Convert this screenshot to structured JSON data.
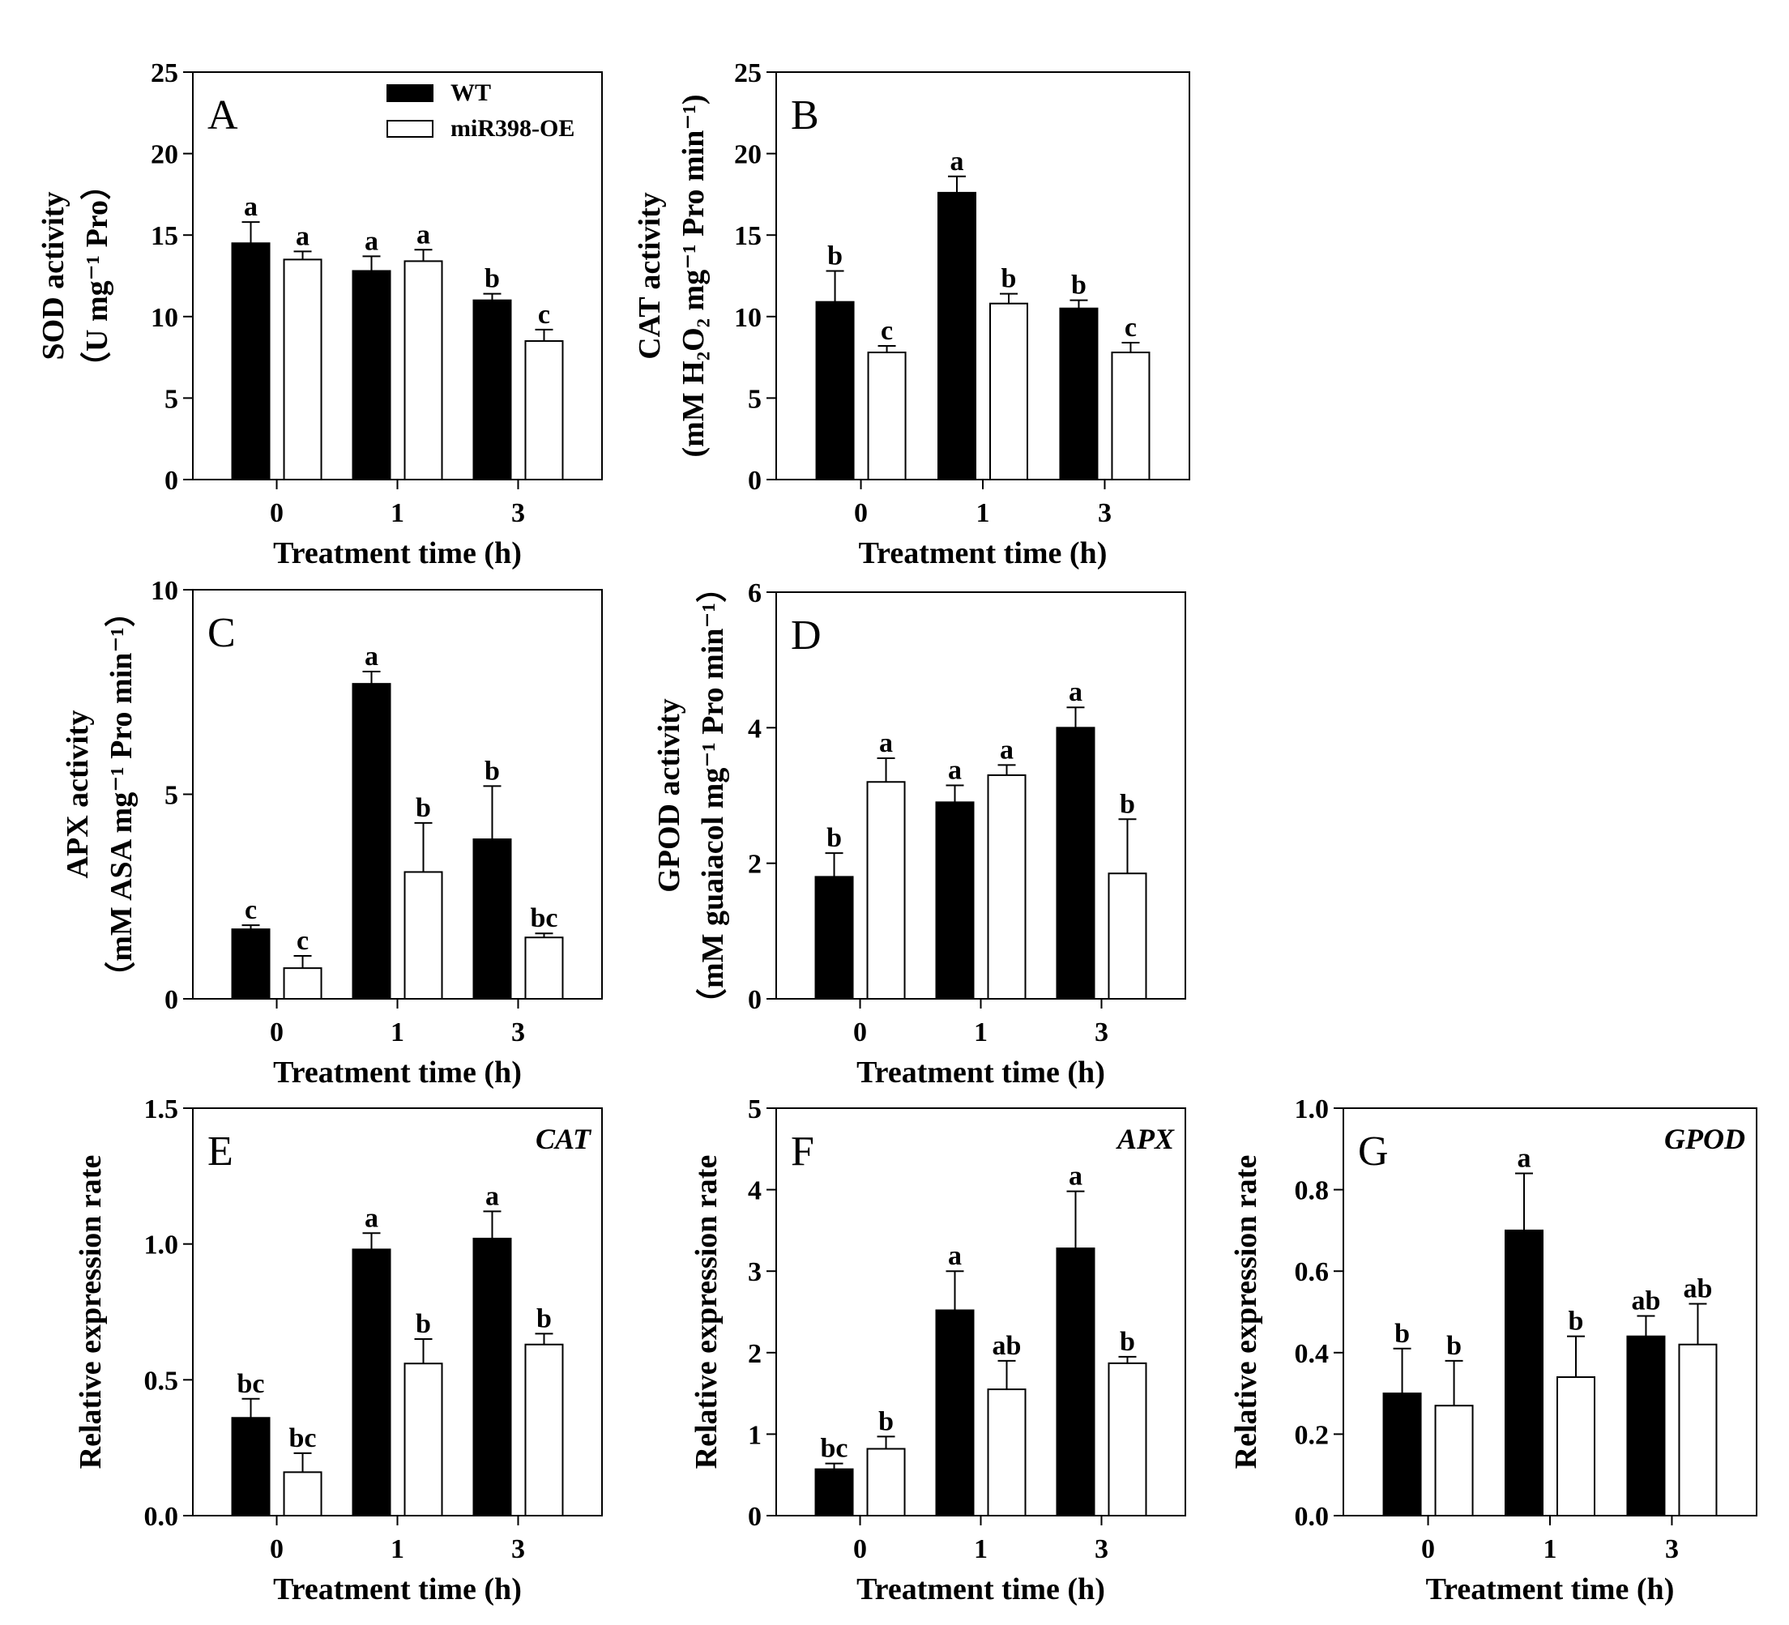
{
  "legend": {
    "series": [
      {
        "name": "WT",
        "color": "#000000"
      },
      {
        "name": "miR398-OE",
        "color": "#ffffff"
      }
    ]
  },
  "chart_data": [
    {
      "type": "bar",
      "panel": "A",
      "gene_label": "",
      "categories": [
        "0",
        "1",
        "3"
      ],
      "xlabel": "Treatment time (h)",
      "ylabel_lines": [
        "SOD activity",
        "（U mg⁻¹ Pro）"
      ],
      "ylim": [
        0,
        25
      ],
      "yticks": [
        "0",
        "5",
        "10",
        "15",
        "20",
        "25"
      ],
      "series": [
        {
          "name": "WT",
          "values": [
            14.5,
            12.8,
            11.0
          ],
          "errors": [
            1.3,
            0.9,
            0.4
          ],
          "sig": [
            "a",
            "a",
            "b"
          ]
        },
        {
          "name": "miR398-OE",
          "values": [
            13.5,
            13.4,
            8.5
          ],
          "errors": [
            0.5,
            0.7,
            0.7
          ],
          "sig": [
            "a",
            "a",
            "c"
          ]
        }
      ]
    },
    {
      "type": "bar",
      "panel": "B",
      "gene_label": "",
      "categories": [
        "0",
        "1",
        "3"
      ],
      "xlabel": "Treatment time (h)",
      "ylabel_lines": [
        "CAT activity",
        "(mM H₂O₂ mg⁻¹ Pro min⁻¹)"
      ],
      "ylim": [
        0,
        25
      ],
      "yticks": [
        "0",
        "5",
        "10",
        "15",
        "20",
        "25"
      ],
      "series": [
        {
          "name": "WT",
          "values": [
            10.9,
            17.6,
            10.5
          ],
          "errors": [
            1.9,
            1.0,
            0.5
          ],
          "sig": [
            "b",
            "a",
            "b"
          ]
        },
        {
          "name": "miR398-OE",
          "values": [
            7.8,
            10.8,
            7.8
          ],
          "errors": [
            0.4,
            0.6,
            0.6
          ],
          "sig": [
            "c",
            "b",
            "c"
          ]
        }
      ]
    },
    {
      "type": "bar",
      "panel": "C",
      "gene_label": "",
      "categories": [
        "0",
        "1",
        "3"
      ],
      "xlabel": "Treatment time (h)",
      "ylabel_lines": [
        "APX activity",
        "（mM ASA mg⁻¹ Pro min⁻¹）"
      ],
      "ylim": [
        0,
        10
      ],
      "yticks": [
        "0",
        "5",
        "10"
      ],
      "series": [
        {
          "name": "WT",
          "values": [
            1.7,
            7.7,
            3.9
          ],
          "errors": [
            0.1,
            0.3,
            1.3
          ],
          "sig": [
            "c",
            "a",
            "b"
          ]
        },
        {
          "name": "miR398-OE",
          "values": [
            0.75,
            3.1,
            1.5
          ],
          "errors": [
            0.3,
            1.2,
            0.1
          ],
          "sig": [
            "c",
            "b",
            "bc"
          ]
        }
      ]
    },
    {
      "type": "bar",
      "panel": "D",
      "gene_label": "",
      "categories": [
        "0",
        "1",
        "3"
      ],
      "xlabel": "Treatment time (h)",
      "ylabel_lines": [
        "GPOD activity",
        "（mM guaiacol mg⁻¹ Pro min⁻¹）"
      ],
      "ylim": [
        0,
        6
      ],
      "yticks": [
        "0",
        "2",
        "4",
        "6"
      ],
      "series": [
        {
          "name": "WT",
          "values": [
            1.8,
            2.9,
            4.0
          ],
          "errors": [
            0.35,
            0.25,
            0.3
          ],
          "sig": [
            "b",
            "a",
            "a"
          ]
        },
        {
          "name": "miR398-OE",
          "values": [
            3.2,
            3.3,
            1.85
          ],
          "errors": [
            0.35,
            0.15,
            0.8
          ],
          "sig": [
            "a",
            "a",
            "b"
          ]
        }
      ]
    },
    {
      "type": "bar",
      "panel": "E",
      "gene_label": "CAT",
      "categories": [
        "0",
        "1",
        "3"
      ],
      "xlabel": "Treatment time (h)",
      "ylabel_lines": [
        "Relative expression rate"
      ],
      "ylim": [
        0,
        1.5
      ],
      "yticks": [
        "0.0",
        "0.5",
        "1.0",
        "1.5"
      ],
      "series": [
        {
          "name": "WT",
          "values": [
            0.36,
            0.98,
            1.02
          ],
          "errors": [
            0.07,
            0.06,
            0.1
          ],
          "sig": [
            "bc",
            "a",
            "a"
          ]
        },
        {
          "name": "miR398-OE",
          "values": [
            0.16,
            0.56,
            0.63
          ],
          "errors": [
            0.07,
            0.09,
            0.04
          ],
          "sig": [
            "bc",
            "b",
            "b"
          ]
        }
      ]
    },
    {
      "type": "bar",
      "panel": "F",
      "gene_label": "APX",
      "categories": [
        "0",
        "1",
        "3"
      ],
      "xlabel": "Treatment time (h)",
      "ylabel_lines": [
        "Relative expression rate"
      ],
      "ylim": [
        0,
        5
      ],
      "yticks": [
        "0",
        "1",
        "2",
        "3",
        "4",
        "5"
      ],
      "series": [
        {
          "name": "WT",
          "values": [
            0.57,
            2.52,
            3.28
          ],
          "errors": [
            0.07,
            0.48,
            0.7
          ],
          "sig": [
            "bc",
            "a",
            "a"
          ]
        },
        {
          "name": "miR398-OE",
          "values": [
            0.82,
            1.55,
            1.87
          ],
          "errors": [
            0.15,
            0.35,
            0.08
          ],
          "sig": [
            "b",
            "ab",
            "b"
          ]
        }
      ]
    },
    {
      "type": "bar",
      "panel": "G",
      "gene_label": "GPOD",
      "categories": [
        "0",
        "1",
        "3"
      ],
      "xlabel": "Treatment time (h)",
      "ylabel_lines": [
        "Relative expression rate"
      ],
      "ylim": [
        0,
        1.0
      ],
      "yticks": [
        "0.0",
        "0.2",
        "0.4",
        "0.6",
        "0.8",
        "1.0"
      ],
      "series": [
        {
          "name": "WT",
          "values": [
            0.3,
            0.7,
            0.44
          ],
          "errors": [
            0.11,
            0.14,
            0.05
          ],
          "sig": [
            "b",
            "a",
            "ab"
          ]
        },
        {
          "name": "miR398-OE",
          "values": [
            0.27,
            0.34,
            0.42
          ],
          "errors": [
            0.11,
            0.1,
            0.1
          ],
          "sig": [
            "b",
            "b",
            "ab"
          ]
        }
      ]
    }
  ]
}
